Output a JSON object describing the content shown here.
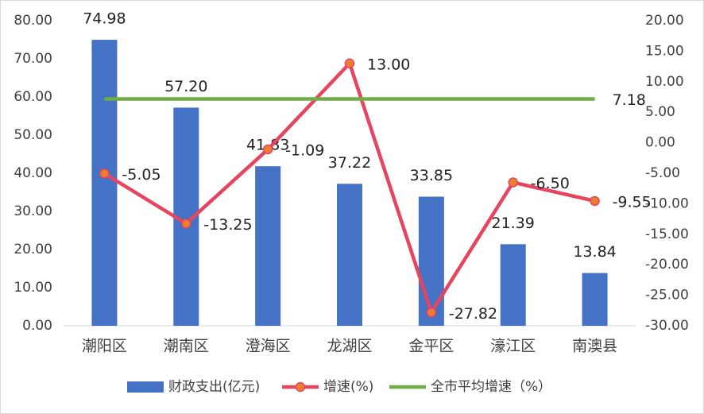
{
  "chart_data": {
    "type": "bar",
    "categories": [
      "潮阳区",
      "潮南区",
      "澄海区",
      "龙湖区",
      "金平区",
      "濠江区",
      "南澳县"
    ],
    "series": [
      {
        "name": "财政支出(亿元)",
        "type": "bar",
        "color": "#4472c4",
        "values": [
          74.98,
          57.2,
          41.83,
          37.22,
          33.85,
          21.39,
          13.84
        ],
        "value_labels": [
          "74.98",
          "57.20",
          "41.83",
          "37.22",
          "33.85",
          "21.39",
          "13.84"
        ]
      },
      {
        "name": "增速(%)",
        "type": "line",
        "axis": "y2",
        "color": "#e6455f",
        "marker_color": "#ed7d31",
        "values": [
          -5.05,
          -13.25,
          -1.09,
          13,
          -27.82,
          -6.5,
          -9.55
        ],
        "value_labels": [
          "-5.05",
          "-13.25",
          "-1.09",
          "13.00",
          "-27.82",
          "-6.50",
          "-9.55"
        ]
      },
      {
        "name": "全市平均增速（%）",
        "type": "line",
        "axis": "y2",
        "color": "#70ad47",
        "values": [
          7.18,
          7.18,
          7.18,
          7.18,
          7.18,
          7.18,
          7.18
        ],
        "value_labels": [
          null,
          null,
          null,
          null,
          null,
          null,
          "7.18"
        ]
      }
    ],
    "ylim": [
      0,
      80
    ],
    "yticks": [
      {
        "value": 0,
        "label": "0.00"
      },
      {
        "value": 10,
        "label": "10.00"
      },
      {
        "value": 20,
        "label": "20.00"
      },
      {
        "value": 30,
        "label": "30.00"
      },
      {
        "value": 40,
        "label": "40.00"
      },
      {
        "value": 50,
        "label": "50.00"
      },
      {
        "value": 60,
        "label": "60.00"
      },
      {
        "value": 70,
        "label": "70.00"
      },
      {
        "value": 80,
        "label": "80.00"
      }
    ],
    "y2lim": [
      -30,
      20
    ],
    "y2ticks": [
      {
        "value": -30,
        "label": "-30.00"
      },
      {
        "value": -25,
        "label": "-25.00"
      },
      {
        "value": -20,
        "label": "-20.00"
      },
      {
        "value": -15,
        "label": "-15.00"
      },
      {
        "value": -10,
        "label": "-10.00"
      },
      {
        "value": -5,
        "label": "-5.00"
      },
      {
        "value": 0,
        "label": "0.00"
      },
      {
        "value": 5,
        "label": "5.00"
      },
      {
        "value": 10,
        "label": "10.00"
      },
      {
        "value": 15,
        "label": "15.00"
      },
      {
        "value": 20,
        "label": "20.00"
      }
    ],
    "grid": false,
    "legend": "bottom"
  }
}
